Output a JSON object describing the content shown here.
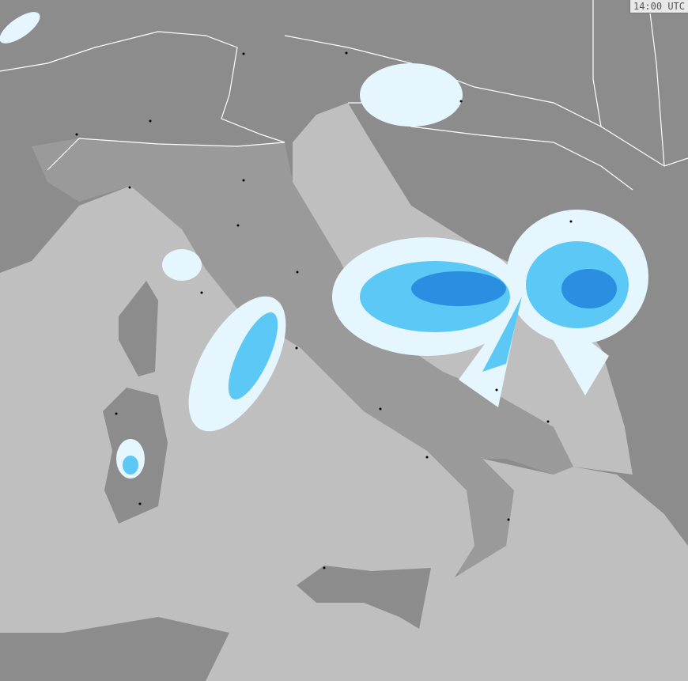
{
  "map": {
    "timestamp": "14:00 UTC",
    "colors": {
      "land": "#8c8c8c",
      "italy_land": "#9a9a9a",
      "sea": "#bfbfbf",
      "border": "#ffffff",
      "precip_light": "#e6f6ff",
      "precip_medium": "#5cc8f5",
      "precip_heavy": "#2a8fe0"
    }
  }
}
